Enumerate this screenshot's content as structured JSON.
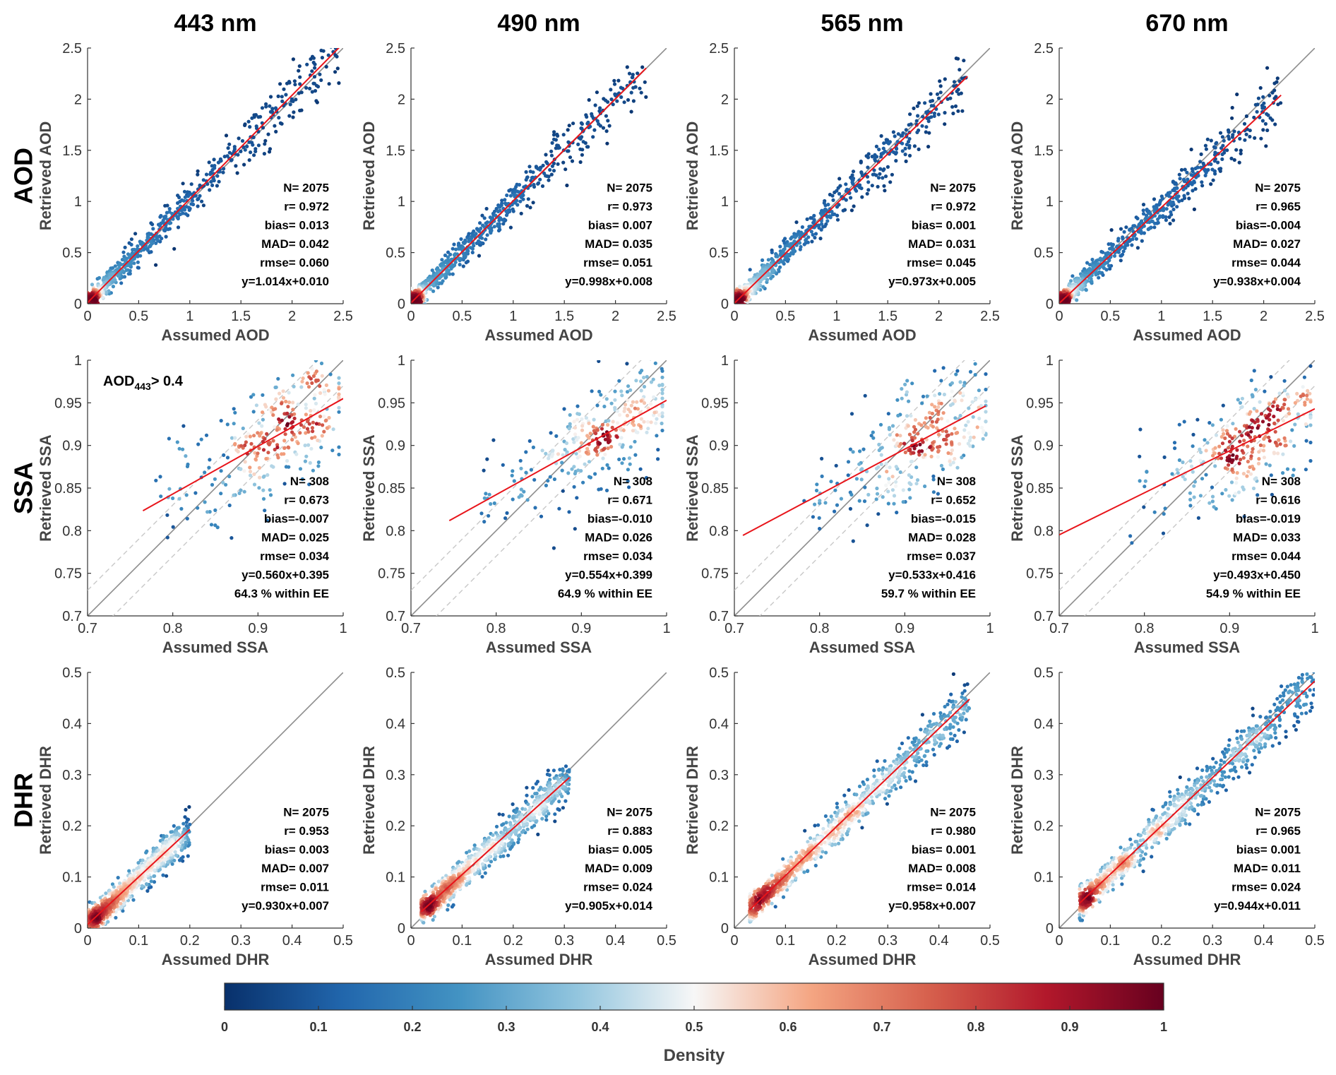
{
  "colormap": {
    "stops": [
      "#08306b",
      "#2166ac",
      "#4393c3",
      "#92c5de",
      "#f7f7f7",
      "#f4a582",
      "#d6604d",
      "#b2182b",
      "#67001f"
    ]
  },
  "colors": {
    "fit_line": "#e8141a",
    "identity_line": "#8c8c8c",
    "ee_line": "#c8c8c8"
  },
  "column_titles": [
    "443 nm",
    "490 nm",
    "565 nm",
    "670 nm"
  ],
  "row_titles": [
    "AOD",
    "SSA",
    "DHR"
  ],
  "colorbar": {
    "label": "Density",
    "range": [
      0,
      1
    ],
    "ticks": [
      "0",
      "0.1",
      "0.2",
      "0.3",
      "0.4",
      "0.5",
      "0.6",
      "0.7",
      "0.8",
      "0.9",
      "1"
    ]
  },
  "chart_data": [
    {
      "type": "scatter",
      "row": "AOD",
      "wavelength": "443 nm",
      "xlabel": "Assumed AOD",
      "ylabel": "Retrieved AOD",
      "xlim": [
        0,
        2.5
      ],
      "ylim": [
        0,
        2.5
      ],
      "ticks": [
        "0",
        "0.5",
        "1",
        "1.5",
        "2",
        "2.5"
      ],
      "stats": [
        "N=  2075",
        "r= 0.972",
        "bias= 0.013",
        "MAD= 0.042",
        "rmse= 0.060",
        "y=1.014x+0.010"
      ],
      "fit": {
        "slope": 1.014,
        "intercept": 0.01,
        "x_range": [
          0,
          2.48
        ]
      },
      "n": 2075,
      "ee": false,
      "annotation": null
    },
    {
      "type": "scatter",
      "row": "AOD",
      "wavelength": "490 nm",
      "xlabel": "Assumed AOD",
      "ylabel": "Retrieved AOD",
      "xlim": [
        0,
        2.5
      ],
      "ylim": [
        0,
        2.5
      ],
      "ticks": [
        "0",
        "0.5",
        "1",
        "1.5",
        "2",
        "2.5"
      ],
      "stats": [
        "N=  2075",
        "r= 0.973",
        "bias= 0.007",
        "MAD= 0.035",
        "rmse= 0.051",
        "y=0.998x+0.008"
      ],
      "fit": {
        "slope": 0.998,
        "intercept": 0.008,
        "x_range": [
          0,
          2.3
        ]
      },
      "n": 2075,
      "ee": false,
      "annotation": null
    },
    {
      "type": "scatter",
      "row": "AOD",
      "wavelength": "565 nm",
      "xlabel": "Assumed AOD",
      "ylabel": "Retrieved AOD",
      "xlim": [
        0,
        2.5
      ],
      "ylim": [
        0,
        2.5
      ],
      "ticks": [
        "0",
        "0.5",
        "1",
        "1.5",
        "2",
        "2.5"
      ],
      "stats": [
        "N=  2075",
        "r= 0.972",
        "bias= 0.001",
        "MAD= 0.031",
        "rmse= 0.045",
        "y=0.973x+0.005"
      ],
      "fit": {
        "slope": 0.973,
        "intercept": 0.005,
        "x_range": [
          0,
          2.28
        ]
      },
      "n": 2075,
      "ee": false,
      "annotation": null
    },
    {
      "type": "scatter",
      "row": "AOD",
      "wavelength": "670 nm",
      "xlabel": "Assumed AOD",
      "ylabel": "Retrieved AOD",
      "xlim": [
        0,
        2.5
      ],
      "ylim": [
        0,
        2.5
      ],
      "ticks": [
        "0",
        "0.5",
        "1",
        "1.5",
        "2",
        "2.5"
      ],
      "stats": [
        "N=  2075",
        "r= 0.965",
        "bias=-0.004",
        "MAD= 0.027",
        "rmse= 0.044",
        "y=0.938x+0.004"
      ],
      "fit": {
        "slope": 0.938,
        "intercept": 0.004,
        "x_range": [
          0,
          2.17
        ]
      },
      "n": 2075,
      "ee": false,
      "annotation": null
    },
    {
      "type": "scatter",
      "row": "SSA",
      "wavelength": "443 nm",
      "xlabel": "Assumed SSA",
      "ylabel": "Retrieved SSA",
      "xlim": [
        0.7,
        1
      ],
      "ylim": [
        0.7,
        1
      ],
      "ticks": [
        "0.7",
        "0.8",
        "0.9",
        "1"
      ],
      "yticks": [
        "0.7",
        "0.75",
        "0.8",
        "0.85",
        "0.9",
        "0.95",
        "1"
      ],
      "stats": [
        "N=   308",
        "r= 0.673",
        "bias=-0.007",
        "MAD= 0.025",
        "rmse= 0.034",
        "y=0.560x+0.395",
        "64.3 % within EE"
      ],
      "fit": {
        "slope": 0.56,
        "intercept": 0.395,
        "x_range": [
          0.765,
          1.0
        ]
      },
      "n": 308,
      "ee": true,
      "annotation": {
        "main": "AOD",
        "sub": "443",
        "tail": "> 0.4"
      }
    },
    {
      "type": "scatter",
      "row": "SSA",
      "wavelength": "490 nm",
      "xlabel": "Assumed SSA",
      "ylabel": "Retrieved SSA",
      "xlim": [
        0.7,
        1
      ],
      "ylim": [
        0.7,
        1
      ],
      "ticks": [
        "0.7",
        "0.8",
        "0.9",
        "1"
      ],
      "yticks": [
        "0.7",
        "0.75",
        "0.8",
        "0.85",
        "0.9",
        "0.95",
        "1"
      ],
      "stats": [
        "N=   308",
        "r= 0.671",
        "bias=-0.010",
        "MAD= 0.026",
        "rmse= 0.034",
        "y=0.554x+0.399",
        "64.9 % within EE"
      ],
      "fit": {
        "slope": 0.554,
        "intercept": 0.399,
        "x_range": [
          0.745,
          1.0
        ]
      },
      "n": 308,
      "ee": true,
      "annotation": null
    },
    {
      "type": "scatter",
      "row": "SSA",
      "wavelength": "565 nm",
      "xlabel": "Assumed SSA",
      "ylabel": "Retrieved SSA",
      "xlim": [
        0.7,
        1
      ],
      "ylim": [
        0.7,
        1
      ],
      "ticks": [
        "0.7",
        "0.8",
        "0.9",
        "1"
      ],
      "yticks": [
        "0.7",
        "0.75",
        "0.8",
        "0.85",
        "0.9",
        "0.95",
        "1"
      ],
      "stats": [
        "N=   308",
        "r= 0.652",
        "bias=-0.015",
        "MAD= 0.028",
        "rmse= 0.037",
        "y=0.533x+0.416",
        "59.7 % within EE"
      ],
      "fit": {
        "slope": 0.533,
        "intercept": 0.416,
        "x_range": [
          0.71,
          0.995
        ]
      },
      "n": 308,
      "ee": true,
      "annotation": null
    },
    {
      "type": "scatter",
      "row": "SSA",
      "wavelength": "670 nm",
      "xlabel": "Assumed SSA",
      "ylabel": "Retrieved SSA",
      "xlim": [
        0.7,
        1
      ],
      "ylim": [
        0.7,
        1
      ],
      "ticks": [
        "0.7",
        "0.8",
        "0.9",
        "1"
      ],
      "yticks": [
        "0.7",
        "0.75",
        "0.8",
        "0.85",
        "0.9",
        "0.95",
        "1"
      ],
      "stats": [
        "N=   308",
        "r= 0.616",
        "bias=-0.019",
        "MAD= 0.033",
        "rmse= 0.044",
        "y=0.493x+0.450",
        "54.9 % within EE"
      ],
      "fit": {
        "slope": 0.493,
        "intercept": 0.45,
        "x_range": [
          0.7,
          1.0
        ]
      },
      "n": 308,
      "ee": true,
      "annotation": null
    },
    {
      "type": "scatter",
      "row": "DHR",
      "wavelength": "443 nm",
      "xlabel": "Assumed DHR",
      "ylabel": "Retrieved DHR",
      "xlim": [
        0,
        0.5
      ],
      "ylim": [
        0,
        0.5
      ],
      "ticks": [
        "0",
        "0.1",
        "0.2",
        "0.3",
        "0.4",
        "0.5"
      ],
      "stats": [
        "N=  2075",
        "r= 0.953",
        "bias= 0.003",
        "MAD= 0.007",
        "rmse= 0.011",
        "y=0.930x+0.007"
      ],
      "fit": {
        "slope": 0.93,
        "intercept": 0.007,
        "x_range": [
          0,
          0.2
        ]
      },
      "n": 2075,
      "ee": false,
      "annotation": null
    },
    {
      "type": "scatter",
      "row": "DHR",
      "wavelength": "490 nm",
      "xlabel": "Assumed DHR",
      "ylabel": "Retrieved DHR",
      "xlim": [
        0,
        0.5
      ],
      "ylim": [
        0,
        0.5
      ],
      "ticks": [
        "0",
        "0.1",
        "0.2",
        "0.3",
        "0.4",
        "0.5"
      ],
      "stats": [
        "N=  2075",
        "r= 0.883",
        "bias= 0.005",
        "MAD= 0.009",
        "rmse= 0.024",
        "y=0.905x+0.014"
      ],
      "fit": {
        "slope": 0.905,
        "intercept": 0.014,
        "x_range": [
          0.02,
          0.31
        ]
      },
      "n": 2075,
      "ee": false,
      "annotation": null
    },
    {
      "type": "scatter",
      "row": "DHR",
      "wavelength": "565 nm",
      "xlabel": "Assumed DHR",
      "ylabel": "Retrieved DHR",
      "xlim": [
        0,
        0.5
      ],
      "ylim": [
        0,
        0.5
      ],
      "ticks": [
        "0",
        "0.1",
        "0.2",
        "0.3",
        "0.4",
        "0.5"
      ],
      "stats": [
        "N=  2075",
        "r= 0.980",
        "bias= 0.001",
        "MAD= 0.008",
        "rmse= 0.014",
        "y=0.958x+0.007"
      ],
      "fit": {
        "slope": 0.958,
        "intercept": 0.007,
        "x_range": [
          0.03,
          0.46
        ]
      },
      "n": 2075,
      "ee": false,
      "annotation": null
    },
    {
      "type": "scatter",
      "row": "DHR",
      "wavelength": "670 nm",
      "xlabel": "Assumed DHR",
      "ylabel": "Retrieved DHR",
      "xlim": [
        0,
        0.5
      ],
      "ylim": [
        0,
        0.5
      ],
      "ticks": [
        "0",
        "0.1",
        "0.2",
        "0.3",
        "0.4",
        "0.5"
      ],
      "stats": [
        "N=  2075",
        "r= 0.965",
        "bias= 0.001",
        "MAD= 0.011",
        "rmse= 0.024",
        "y=0.944x+0.011"
      ],
      "fit": {
        "slope": 0.944,
        "intercept": 0.011,
        "x_range": [
          0.04,
          0.5
        ]
      },
      "n": 2075,
      "ee": false,
      "annotation": null
    }
  ]
}
